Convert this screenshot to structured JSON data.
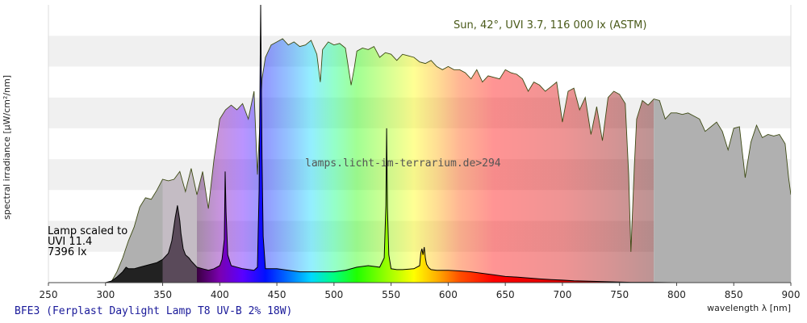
{
  "chart_data": {
    "type": "area",
    "xlabel": "wavelength λ [nm]",
    "ylabel": "spectral irradiance [µW/cm²/nm]",
    "xlim": [
      250,
      900
    ],
    "ylim": [
      0,
      9
    ],
    "x_ticks": [
      "250",
      "300",
      "350",
      "400",
      "450",
      "500",
      "550",
      "600",
      "650",
      "700",
      "750",
      "800",
      "850",
      "900"
    ],
    "grid": "horizontal bands",
    "sun_label": "Sun, 42°, UVI 3.7, 116 000 lx (ASTM)",
    "lamp_label": [
      "Lamp scaled to",
      "UVI 11.4",
      "7396 lx"
    ],
    "watermark": "lamps.licht-im-terrarium.de>294",
    "caption": "BFE3 (Ferplast Daylight Lamp T8 UV-B 2% 18W)",
    "series": [
      {
        "kind": "sun",
        "x": [
          290,
          295,
          300,
          305,
          310,
          315,
          320,
          325,
          330,
          335,
          340,
          345,
          350,
          355,
          360,
          365,
          370,
          375,
          380,
          385,
          390,
          395,
          400,
          405,
          410,
          415,
          420,
          425,
          430,
          433,
          437,
          440,
          445,
          450,
          455,
          460,
          465,
          470,
          475,
          480,
          485,
          488,
          490,
          495,
          500,
          505,
          510,
          515,
          518,
          520,
          525,
          530,
          535,
          540,
          545,
          550,
          555,
          560,
          565,
          570,
          575,
          580,
          585,
          590,
          595,
          600,
          605,
          610,
          615,
          620,
          625,
          630,
          635,
          640,
          645,
          650,
          655,
          660,
          665,
          670,
          675,
          680,
          685,
          690,
          695,
          700,
          705,
          710,
          715,
          720,
          725,
          730,
          735,
          740,
          745,
          750,
          755,
          758,
          760,
          763,
          765,
          770,
          775,
          780,
          785,
          790,
          795,
          800,
          805,
          810,
          815,
          820,
          825,
          830,
          835,
          840,
          845,
          850,
          855,
          860,
          865,
          870,
          875,
          880,
          885,
          890,
          895,
          898,
          900
        ],
        "values": [
          0,
          0,
          0,
          0.02,
          0.35,
          0.8,
          1.35,
          1.8,
          2.45,
          2.75,
          2.7,
          3.0,
          3.35,
          3.3,
          3.35,
          3.6,
          2.95,
          3.7,
          2.85,
          3.6,
          2.4,
          4.0,
          5.3,
          5.6,
          5.75,
          5.6,
          5.8,
          5.3,
          6.2,
          3.5,
          6.6,
          7.3,
          7.7,
          7.8,
          7.9,
          7.7,
          7.8,
          7.65,
          7.7,
          7.85,
          7.4,
          6.5,
          7.55,
          7.8,
          7.7,
          7.75,
          7.6,
          6.4,
          7.0,
          7.5,
          7.6,
          7.55,
          7.65,
          7.3,
          7.45,
          7.4,
          7.2,
          7.4,
          7.35,
          7.3,
          7.15,
          7.1,
          7.2,
          7.0,
          6.9,
          7.0,
          6.9,
          6.9,
          6.8,
          6.6,
          6.9,
          6.5,
          6.7,
          6.65,
          6.6,
          6.9,
          6.8,
          6.75,
          6.6,
          6.2,
          6.5,
          6.4,
          6.2,
          6.35,
          6.5,
          5.2,
          6.2,
          6.3,
          5.6,
          6.0,
          4.8,
          5.7,
          4.6,
          6.0,
          6.2,
          6.1,
          5.8,
          3.5,
          1.0,
          3.8,
          5.3,
          5.9,
          5.75,
          5.95,
          5.9,
          5.3,
          5.5,
          5.5,
          5.45,
          5.5,
          5.4,
          5.3,
          4.9,
          5.05,
          5.2,
          4.9,
          4.3,
          5.0,
          5.05,
          3.4,
          4.55,
          5.1,
          4.7,
          4.8,
          4.75,
          4.8,
          4.5,
          3.4,
          2.85
        ]
      },
      {
        "kind": "lamp",
        "x": [
          250,
          280,
          300,
          305,
          310,
          315,
          318,
          320,
          325,
          330,
          335,
          340,
          345,
          350,
          355,
          358,
          361,
          363,
          365,
          366,
          368,
          370,
          373,
          375,
          380,
          385,
          390,
          395,
          400,
          402,
          404,
          404.7,
          405.5,
          407,
          410,
          420,
          430,
          433,
          434.5,
          435.8,
          437,
          438,
          440,
          445,
          450,
          460,
          470,
          480,
          490,
          500,
          510,
          520,
          530,
          540,
          544,
          545.5,
          546.1,
          546.8,
          548,
          550,
          555,
          560,
          570,
          575,
          576,
          577,
          578,
          579,
          580,
          581,
          583,
          585,
          590,
          600,
          610,
          620,
          630,
          640,
          650,
          660,
          670,
          680,
          690,
          700,
          710,
          720,
          730,
          740,
          750,
          760,
          770,
          780,
          800,
          820,
          850,
          880,
          900
        ],
        "values": [
          0,
          0,
          0,
          0.05,
          0.18,
          0.35,
          0.5,
          0.45,
          0.45,
          0.5,
          0.55,
          0.6,
          0.65,
          0.75,
          0.95,
          1.35,
          2.1,
          2.5,
          2.0,
          1.6,
          1.1,
          0.9,
          0.8,
          0.7,
          0.5,
          0.45,
          0.4,
          0.45,
          0.55,
          0.75,
          1.4,
          3.6,
          2.3,
          0.9,
          0.55,
          0.45,
          0.4,
          0.5,
          3.0,
          9.0,
          4.0,
          1.5,
          0.45,
          0.45,
          0.45,
          0.4,
          0.35,
          0.35,
          0.35,
          0.35,
          0.4,
          0.5,
          0.55,
          0.5,
          0.8,
          2.5,
          5.0,
          2.4,
          0.9,
          0.45,
          0.42,
          0.42,
          0.45,
          0.55,
          0.95,
          1.1,
          0.9,
          1.15,
          0.8,
          0.6,
          0.48,
          0.42,
          0.4,
          0.4,
          0.38,
          0.35,
          0.3,
          0.25,
          0.2,
          0.18,
          0.15,
          0.12,
          0.1,
          0.08,
          0.06,
          0.05,
          0.04,
          0.03,
          0.02,
          0.01,
          0.01,
          0.01,
          0,
          0,
          0,
          0,
          0
        ]
      }
    ]
  }
}
